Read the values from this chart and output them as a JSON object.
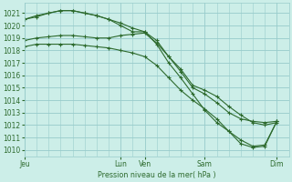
{
  "title": "Pression niveau de la mer( hPa )",
  "bg_color": "#cceee8",
  "grid_color": "#99cccc",
  "line_color": "#2d6a2d",
  "ylim": [
    1009.5,
    1021.8
  ],
  "yticks": [
    1010,
    1011,
    1012,
    1013,
    1014,
    1015,
    1016,
    1017,
    1018,
    1019,
    1020,
    1021
  ],
  "xlim": [
    0,
    22
  ],
  "xtick_positions": [
    0,
    8,
    10,
    15,
    21
  ],
  "xtick_labels": [
    "Jeu",
    "Lun",
    "Ven",
    "Sam",
    "Dim"
  ],
  "line1_x": [
    0,
    1,
    2,
    3,
    4,
    5,
    6,
    7,
    8,
    9,
    10,
    11,
    12,
    13,
    14,
    15,
    16,
    17,
    18,
    19,
    20,
    21
  ],
  "line1_y": [
    1018.8,
    1019.0,
    1019.1,
    1019.2,
    1019.2,
    1019.1,
    1019.0,
    1019.0,
    1019.2,
    1019.3,
    1019.4,
    1018.6,
    1017.5,
    1016.5,
    1015.2,
    1014.8,
    1014.3,
    1013.5,
    1012.8,
    1012.2,
    1012.0,
    1012.2
  ],
  "line2_x": [
    0,
    1,
    2,
    3,
    4,
    5,
    6,
    7,
    8,
    9,
    10,
    11,
    12,
    13,
    14,
    15,
    16,
    17,
    18,
    19,
    20,
    21
  ],
  "line2_y": [
    1020.5,
    1020.8,
    1021.0,
    1021.2,
    1021.2,
    1021.0,
    1020.8,
    1020.5,
    1020.2,
    1019.8,
    1019.5,
    1018.8,
    1017.5,
    1016.3,
    1015.0,
    1014.5,
    1013.8,
    1013.0,
    1012.5,
    1012.3,
    1012.2,
    1012.3
  ],
  "line3_x": [
    0,
    1,
    2,
    3,
    4,
    5,
    6,
    7,
    8,
    9,
    10,
    11,
    12,
    13,
    14,
    15,
    16,
    17,
    18,
    19,
    20,
    21
  ],
  "line3_y": [
    1020.5,
    1020.7,
    1021.0,
    1021.2,
    1021.2,
    1021.0,
    1020.8,
    1020.5,
    1020.0,
    1019.5,
    1019.5,
    1018.5,
    1017.0,
    1015.8,
    1014.5,
    1013.2,
    1012.2,
    1011.5,
    1010.8,
    1010.3,
    1010.4,
    1012.3
  ],
  "line4_x": [
    0,
    1,
    2,
    3,
    4,
    5,
    6,
    7,
    8,
    9,
    10,
    11,
    12,
    13,
    14,
    15,
    16,
    17,
    18,
    19,
    20,
    21
  ],
  "line4_y": [
    1018.3,
    1018.5,
    1018.5,
    1018.5,
    1018.5,
    1018.4,
    1018.3,
    1018.2,
    1018.0,
    1017.8,
    1017.5,
    1016.8,
    1015.8,
    1014.8,
    1014.0,
    1013.3,
    1012.5,
    1011.5,
    1010.5,
    1010.2,
    1010.3,
    1012.3
  ]
}
